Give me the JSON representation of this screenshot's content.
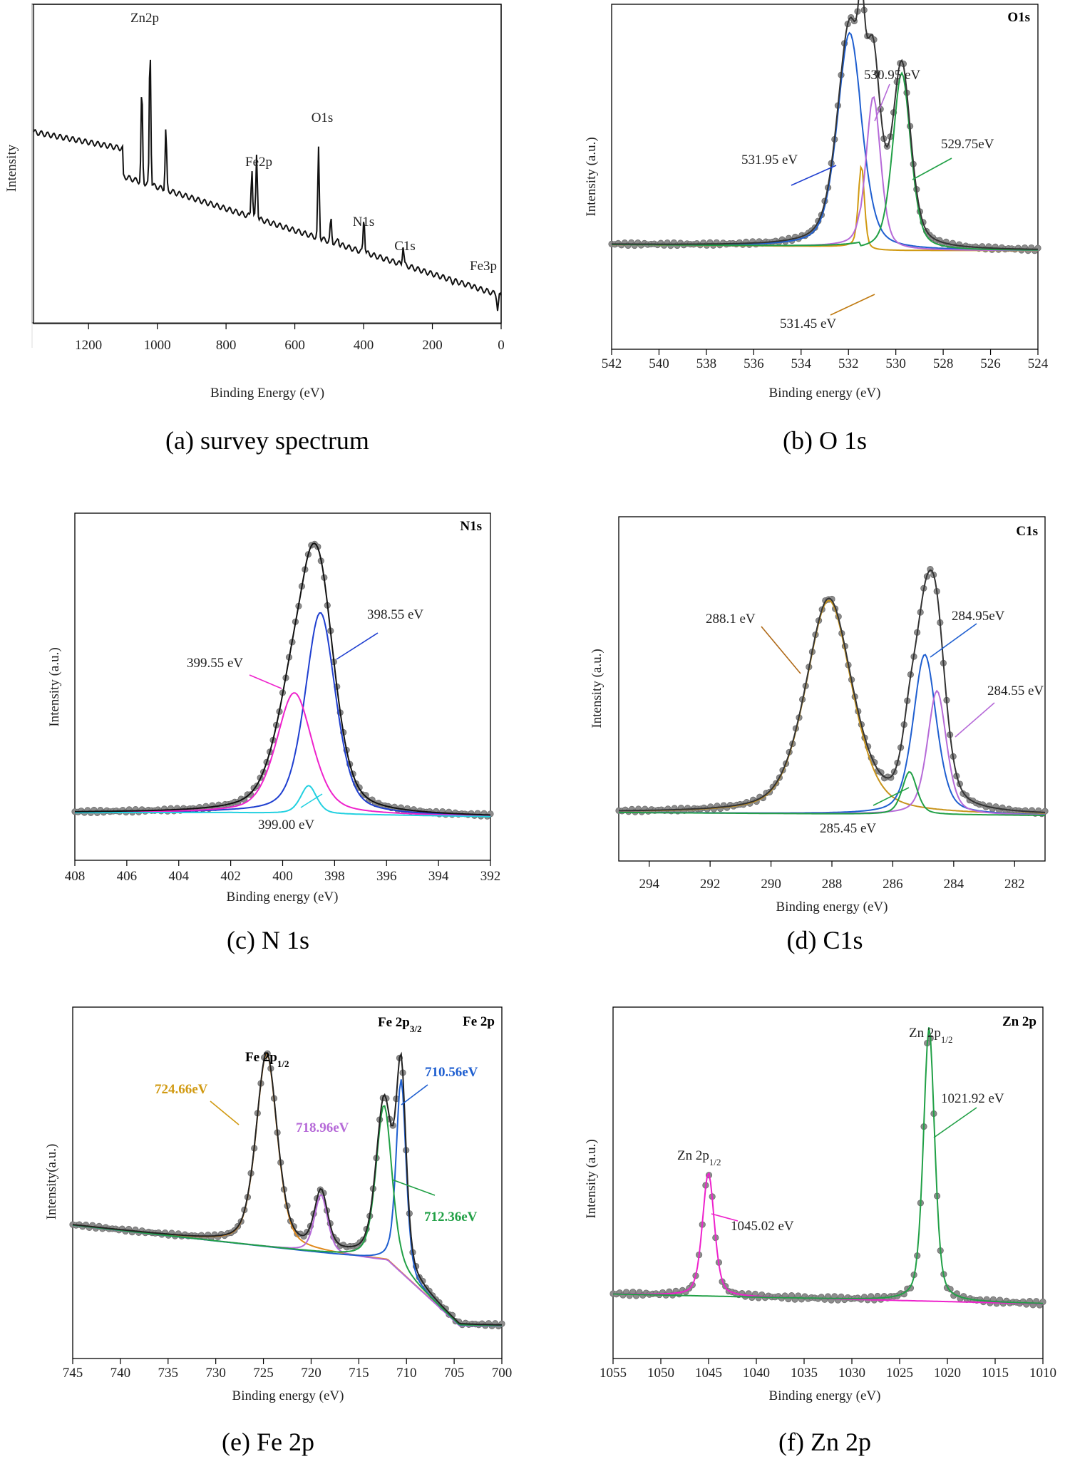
{
  "panels": [
    {
      "id": "a",
      "caption": "(a) survey spectrum",
      "xlabel": "Binding Energy (eV)",
      "ylabel": "Intensity",
      "xlim": [
        1360,
        0
      ],
      "ylim": [
        0,
        100
      ],
      "xticks": [
        1200,
        1000,
        800,
        600,
        400,
        200,
        0
      ],
      "corner_title": "",
      "peak_labels": [
        {
          "text": "Zn2p",
          "x": 1021,
          "y": 94
        },
        {
          "text": "O1s",
          "x": 531,
          "y": 67
        },
        {
          "text": "Fe2p",
          "x": 711,
          "y": 54
        },
        {
          "text": "N1s",
          "x": 399,
          "y": 39
        },
        {
          "text": "C1s",
          "x": 285,
          "y": 30
        },
        {
          "text": "Fe3p",
          "x": 56,
          "y": 21
        }
      ]
    },
    {
      "id": "b",
      "caption": "(b) O 1s",
      "xlabel": "Binding energy (eV)",
      "ylabel": "Intensity (a.u.)",
      "xlim": [
        542,
        524
      ],
      "ylim": [
        0,
        100
      ],
      "xticks": [
        542,
        540,
        538,
        536,
        534,
        532,
        530,
        528,
        526,
        524
      ],
      "corner_title": "O1s",
      "annotations": [
        {
          "text": "530.95 eV",
          "color": "#b66ad8"
        },
        {
          "text": "531.95 eV",
          "color": "#1f3fd0"
        },
        {
          "text": "529.75eV",
          "color": "#21a046"
        },
        {
          "text": "531.45 eV",
          "color": "#c07a10"
        }
      ]
    },
    {
      "id": "c",
      "caption": "(c) N 1s",
      "xlabel": "Binding energy (eV)",
      "ylabel": "Intensity (a.u.)",
      "xlim": [
        408,
        392
      ],
      "ylim": [
        0,
        100
      ],
      "xticks": [
        408,
        406,
        404,
        402,
        400,
        398,
        396,
        394,
        392
      ],
      "corner_title": "N1s",
      "annotations": [
        {
          "text": "398.55 eV",
          "color": "#1f3fd0"
        },
        {
          "text": "399.55 eV",
          "color": "#ee22cc"
        },
        {
          "text": "399.00 eV",
          "color": "#22d0e0"
        }
      ]
    },
    {
      "id": "d",
      "caption": "(d) C1s",
      "xlabel": "Binding energy (eV)",
      "ylabel": "Intensity (a.u.)",
      "xlim": [
        295,
        281
      ],
      "ylim": [
        0,
        100
      ],
      "xticks": [
        294,
        292,
        290,
        288,
        286,
        284,
        282
      ],
      "corner_title": "C1s",
      "annotations": [
        {
          "text": "288.1 eV",
          "color": "#b06a18"
        },
        {
          "text": "284.95eV",
          "color": "#1f5fd0"
        },
        {
          "text": "284.55 eV",
          "color": "#b66ad8"
        },
        {
          "text": "285.45 eV",
          "color": "#21a046"
        }
      ]
    },
    {
      "id": "e",
      "caption": "(e) Fe 2p",
      "xlabel": "Binding energy (eV)",
      "ylabel": "Intensity(a.u.)",
      "xlim": [
        745,
        700
      ],
      "ylim": [
        0,
        100
      ],
      "xticks": [
        745,
        740,
        735,
        730,
        725,
        720,
        715,
        710,
        705,
        700
      ],
      "corner_title": "Fe 2p",
      "peak_titles": [
        {
          "base": "Fe 2p",
          "sub": "1/2"
        },
        {
          "base": "Fe 2p",
          "sub": "3/2"
        }
      ],
      "annotations": [
        {
          "text": "724.66eV",
          "color": "#d19a12"
        },
        {
          "text": "718.96eV",
          "color": "#b66ad8"
        },
        {
          "text": "710.56eV",
          "color": "#1f5fd0"
        },
        {
          "text": "712.36eV",
          "color": "#21a046"
        }
      ]
    },
    {
      "id": "f",
      "caption": "(f) Zn 2p",
      "xlabel": "Binding energy (eV)",
      "ylabel": "Intensity (a.u.)",
      "xlim": [
        1055,
        1010
      ],
      "ylim": [
        0,
        100
      ],
      "xticks": [
        1055,
        1050,
        1045,
        1040,
        1035,
        1030,
        1025,
        1020,
        1015,
        1010
      ],
      "corner_title": "Zn 2p",
      "peak_titles": [
        {
          "base": "Zn 2p",
          "sub": "1/2"
        },
        {
          "base": "Zn 2p",
          "sub": "1/2"
        }
      ],
      "annotations": [
        {
          "text": "1021.92 eV",
          "color": "#21a046"
        },
        {
          "text": "1045.02 eV",
          "color": "#ee22cc"
        }
      ]
    }
  ],
  "chart_data": [
    {
      "type": "line",
      "panel": "a",
      "title": "(a) survey spectrum",
      "xlabel": "Binding Energy (eV)",
      "ylabel": "Intensity",
      "xlim": [
        1360,
        0
      ],
      "ylim": [
        0,
        100
      ],
      "series": [
        {
          "name": "survey",
          "peaks": [
            {
              "x": 1045,
              "h": 70
            },
            {
              "x": 1021,
              "h": 94
            },
            {
              "x": 975,
              "h": 52
            },
            {
              "x": 711,
              "h": 54
            },
            {
              "x": 725,
              "h": 46
            },
            {
              "x": 531,
              "h": 67
            },
            {
              "x": 495,
              "h": 32
            },
            {
              "x": 474,
              "h": 23
            },
            {
              "x": 399,
              "h": 39
            },
            {
              "x": 285,
              "h": 30
            },
            {
              "x": 140,
              "h": 19
            },
            {
              "x": 90,
              "h": 21
            },
            {
              "x": 10,
              "h": 12
            }
          ]
        }
      ]
    },
    {
      "type": "line",
      "panel": "b",
      "title": "O1s",
      "xlabel": "Binding energy (eV)",
      "ylabel": "Intensity (a.u.)",
      "xlim": [
        542,
        524
      ],
      "series": [
        {
          "name": "531.95 eV",
          "center": 531.95,
          "height": 100
        },
        {
          "name": "531.45 eV",
          "center": 531.45,
          "height": 40
        },
        {
          "name": "530.95 eV",
          "center": 530.95,
          "height": 72
        },
        {
          "name": "529.75eV",
          "center": 529.75,
          "height": 83
        }
      ]
    },
    {
      "type": "line",
      "panel": "c",
      "title": "N1s",
      "xlabel": "Binding energy (eV)",
      "ylabel": "Intensity (a.u.)",
      "xlim": [
        408,
        392
      ],
      "series": [
        {
          "name": "398.55 eV",
          "center": 398.55,
          "height": 100
        },
        {
          "name": "399.55 eV",
          "center": 399.55,
          "height": 60
        },
        {
          "name": "399.00 eV",
          "center": 399.0,
          "height": 14
        }
      ]
    },
    {
      "type": "line",
      "panel": "d",
      "title": "C1s",
      "xlabel": "Binding energy (eV)",
      "ylabel": "Intensity (a.u.)",
      "xlim": [
        295,
        281
      ],
      "series": [
        {
          "name": "288.1 eV",
          "center": 288.1,
          "height": 100
        },
        {
          "name": "284.95eV",
          "center": 284.95,
          "height": 75
        },
        {
          "name": "284.55 eV",
          "center": 284.55,
          "height": 58
        },
        {
          "name": "285.45 eV",
          "center": 285.45,
          "height": 20
        }
      ]
    },
    {
      "type": "line",
      "panel": "e",
      "title": "Fe 2p",
      "xlabel": "Binding energy (eV)",
      "ylabel": "Intensity(a.u.)",
      "xlim": [
        745,
        700
      ],
      "series": [
        {
          "name": "724.66eV",
          "center": 724.66,
          "height": 100
        },
        {
          "name": "718.96eV",
          "center": 718.96,
          "height": 30
        },
        {
          "name": "710.56eV",
          "center": 710.56,
          "height": 100
        },
        {
          "name": "712.36eV",
          "center": 712.36,
          "height": 80
        }
      ]
    },
    {
      "type": "line",
      "panel": "f",
      "title": "Zn 2p",
      "xlabel": "Binding energy (eV)",
      "ylabel": "Intensity (a.u.)",
      "xlim": [
        1055,
        1010
      ],
      "series": [
        {
          "name": "1045.02 eV",
          "center": 1045.02,
          "height": 45
        },
        {
          "name": "1021.92 eV",
          "center": 1021.92,
          "height": 100
        }
      ]
    }
  ]
}
